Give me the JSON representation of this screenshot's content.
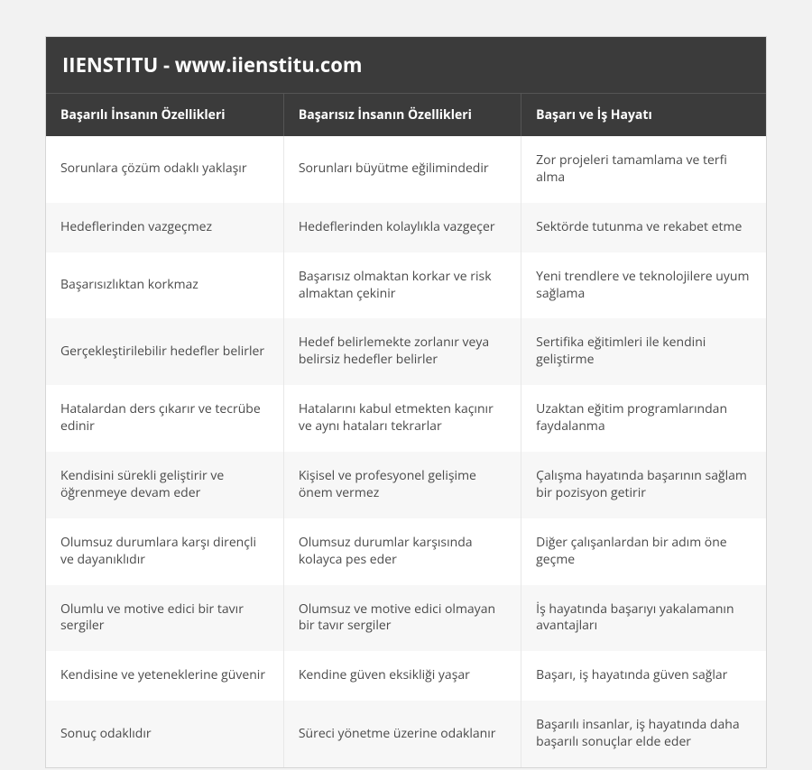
{
  "title": "IIENSTITU - www.iienstitu.com",
  "table": {
    "type": "table",
    "background_color": "#ffffff",
    "alt_row_color": "#f7f7f7",
    "header_bg": "#3b3b3b",
    "header_fg": "#ffffff",
    "border_color": "#e8e8e8",
    "title_fontsize": 22,
    "header_fontsize": 14,
    "cell_fontsize": 14,
    "columns": [
      "Başarılı İnsanın Özellikleri",
      "Başarısız İnsanın Özellikleri",
      "Başarı ve İş Hayatı"
    ],
    "column_widths_pct": [
      33,
      33,
      34
    ],
    "rows": [
      [
        "Sorunlara çözüm odaklı yaklaşır",
        "Sorunları büyütme eğilimindedir",
        "Zor projeleri tamamlama ve terfi alma"
      ],
      [
        "Hedeflerinden vazgeçmez",
        "Hedeflerinden kolaylıkla vazgeçer",
        "Sektörde tutunma ve rekabet etme"
      ],
      [
        "Başarısızlıktan korkmaz",
        "Başarısız olmaktan korkar ve risk almaktan çekinir",
        "Yeni trendlere ve teknolojilere uyum sağlama"
      ],
      [
        "Gerçekleştirilebilir hedefler belirler",
        "Hedef belirlemekte zorlanır veya belirsiz hedefler belirler",
        "Sertifika eğitimleri ile kendini geliştirme"
      ],
      [
        "Hatalardan ders çıkarır ve tecrübe edinir",
        "Hatalarını kabul etmekten kaçınır ve aynı hataları tekrarlar",
        "Uzaktan eğitim programlarından faydalanma"
      ],
      [
        "Kendisini sürekli geliştirir ve öğrenmeye devam eder",
        "Kişisel ve profesyonel gelişime önem vermez",
        "Çalışma hayatında başarının sağlam bir pozisyon getirir"
      ],
      [
        "Olumsuz durumlara karşı dirençli ve dayanıklıdır",
        "Olumsuz durumlar karşısında kolayca pes eder",
        "Diğer çalışanlardan bir adım öne geçme"
      ],
      [
        "Olumlu ve motive edici bir tavır sergiler",
        "Olumsuz ve motive edici olmayan bir tavır sergiler",
        "İş hayatında başarıyı yakalamanın avantajları"
      ],
      [
        "Kendisine ve yeteneklerine güvenir",
        "Kendine güven eksikliği yaşar",
        "Başarı, iş hayatında güven sağlar"
      ],
      [
        "Sonuç odaklıdır",
        "Süreci yönetme üzerine odaklanır",
        "Başarılı insanlar, iş hayatında daha başarılı sonuçlar elde eder"
      ]
    ]
  }
}
